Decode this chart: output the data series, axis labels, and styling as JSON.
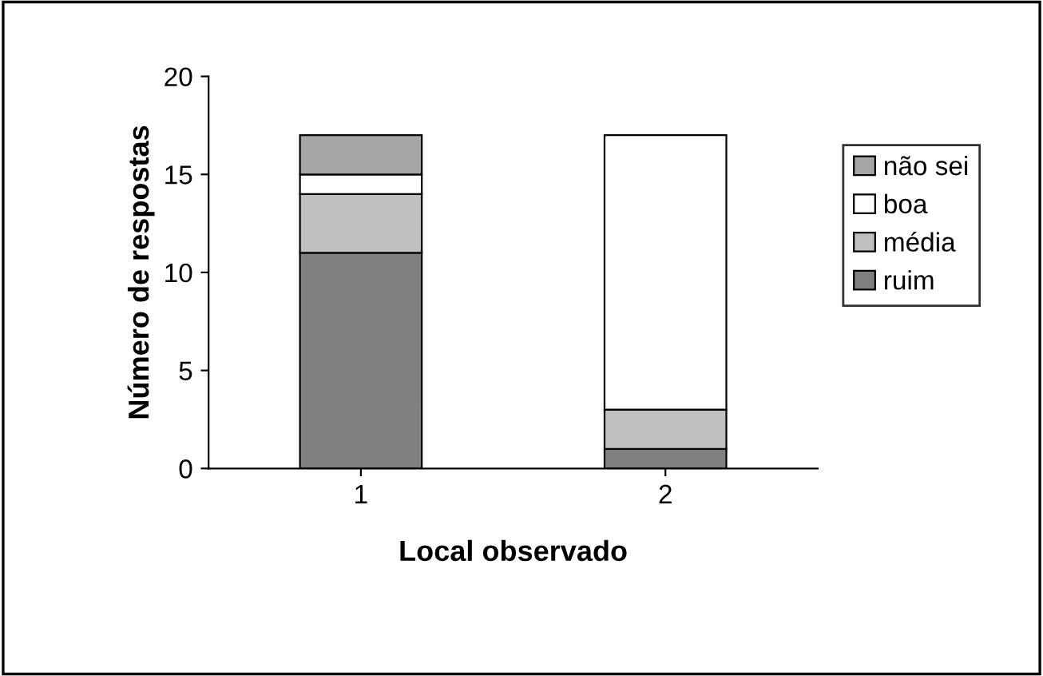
{
  "chart_data": {
    "type": "bar",
    "stacked": true,
    "xlabel": "Local observado",
    "ylabel": "Número de respostas",
    "categories": [
      "1",
      "2"
    ],
    "series": [
      {
        "name": "ruim",
        "color": "#808080",
        "values": [
          11,
          1
        ]
      },
      {
        "name": "média",
        "color": "#c0c0c0",
        "values": [
          3,
          2
        ]
      },
      {
        "name": "boa",
        "color": "#ffffff",
        "values": [
          1,
          14
        ]
      },
      {
        "name": "não sei",
        "color": "#a6a6a6",
        "values": [
          2,
          0
        ]
      }
    ],
    "ylim": [
      0,
      20
    ],
    "yticks": [
      0,
      5,
      10,
      15,
      20
    ],
    "grid": false,
    "legend": "right"
  }
}
